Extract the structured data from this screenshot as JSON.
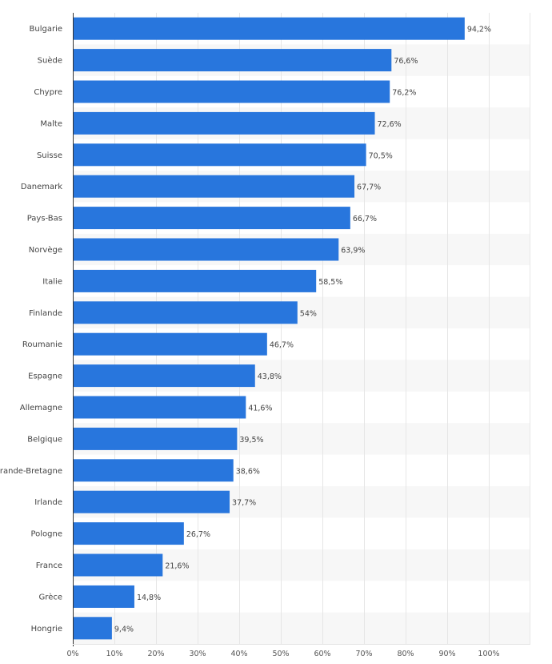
{
  "chart_data": {
    "type": "bar",
    "orientation": "horizontal",
    "categories": [
      "Bulgarie",
      "Suède",
      "Chypre",
      "Malte",
      "Suisse",
      "Danemark",
      "Pays-Bas",
      "Norvège",
      "Italie",
      "Finlande",
      "Roumanie",
      "Espagne",
      "Allemagne",
      "Belgique",
      "Grande-Bretagne",
      "Irlande",
      "Pologne",
      "France",
      "Grèce",
      "Hongrie"
    ],
    "values": [
      94.2,
      76.6,
      76.2,
      72.6,
      70.5,
      67.7,
      66.7,
      63.9,
      58.5,
      54,
      46.7,
      43.8,
      41.6,
      39.5,
      38.6,
      37.7,
      26.7,
      21.6,
      14.8,
      9.4
    ],
    "value_labels": [
      "94,2%",
      "76,6%",
      "76,2%",
      "72,6%",
      "70,5%",
      "67,7%",
      "66,7%",
      "63,9%",
      "58,5%",
      "54%",
      "46,7%",
      "43,8%",
      "41,6%",
      "39,5%",
      "38,6%",
      "37,7%",
      "26,7%",
      "21,6%",
      "14,8%",
      "9,4%"
    ],
    "xticks": [
      0,
      10,
      20,
      30,
      40,
      50,
      60,
      70,
      80,
      90,
      100
    ],
    "xtick_labels": [
      "0%",
      "10%",
      "20%",
      "30%",
      "40%",
      "50%",
      "60%",
      "70%",
      "80%",
      "90%",
      "100%"
    ],
    "xlim": [
      0,
      110
    ],
    "title": "",
    "xlabel": "",
    "ylabel": "",
    "grid": true,
    "bar_color": "#2876dd",
    "band_color": "#f7f7f7",
    "grid_color": "#e6e6e6",
    "axis_color": "#333333"
  }
}
